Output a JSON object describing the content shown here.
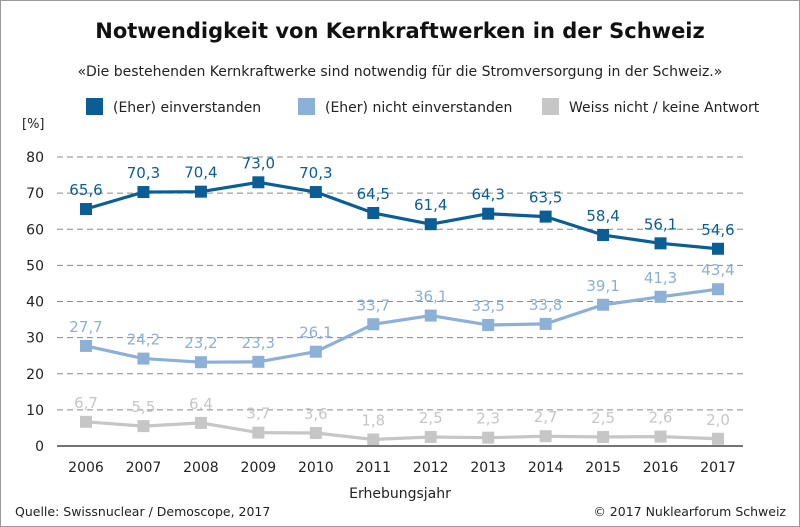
{
  "header": {
    "title": "Notwendigkeit von Kernkraftwerken in der Schweiz",
    "subtitle": "«Die bestehenden Kernkraftwerke sind notwendig für die Stromversorgung in der Schweiz.»"
  },
  "footer": {
    "source": "Quelle: Swissnuclear / Demoscope, 2017",
    "copyright": "© 2017 Nuklearforum Schweiz"
  },
  "chart_data": {
    "type": "line",
    "title": "Notwendigkeit von Kernkraftwerken in der Schweiz",
    "subtitle": "«Die bestehenden Kernkraftwerke sind notwendig für die Stromversorgung in der Schweiz.»",
    "xlabel": "Erhebungsjahr",
    "ylabel": "[%]",
    "x": [
      "2006",
      "2007",
      "2008",
      "2009",
      "2010",
      "2011",
      "2012",
      "2013",
      "2014",
      "2015",
      "2016",
      "2017"
    ],
    "ylim": [
      0,
      80
    ],
    "yticks": [
      0,
      10,
      20,
      30,
      40,
      50,
      60,
      70,
      80
    ],
    "grid": "horizontal-dashed",
    "legend": "top",
    "series": [
      {
        "name": "(Eher) einverstanden",
        "color": "#0a5e95",
        "values": [
          65.6,
          70.3,
          70.4,
          73.0,
          70.3,
          64.5,
          61.4,
          64.3,
          63.5,
          58.4,
          56.1,
          54.6
        ],
        "labels": [
          "65,6",
          "70,3",
          "70,4",
          "73,0",
          "70,3",
          "64,5",
          "61,4",
          "64,3",
          "63,5",
          "58,4",
          "56,1",
          "54,6"
        ]
      },
      {
        "name": "(Eher) nicht einverstanden",
        "color": "#8cb0d6",
        "values": [
          27.7,
          24.2,
          23.2,
          23.3,
          26.1,
          33.7,
          36.1,
          33.5,
          33.8,
          39.1,
          41.3,
          43.4
        ],
        "labels": [
          "27,7",
          "24,2",
          "23,2",
          "23,3",
          "26,1",
          "33,7",
          "36,1",
          "33,5",
          "33,8",
          "39,1",
          "41,3",
          "43,4"
        ]
      },
      {
        "name": "Weiss nicht / keine Antwort",
        "color": "#c6c6c6",
        "values": [
          6.7,
          5.5,
          6.4,
          3.7,
          3.6,
          1.8,
          2.5,
          2.3,
          2.7,
          2.5,
          2.6,
          2.0
        ],
        "labels": [
          "6,7",
          "5,5",
          "6,4",
          "3,7",
          "3,6",
          "1,8",
          "2,5",
          "2,3",
          "2,7",
          "2,5",
          "2,6",
          "2,0"
        ]
      }
    ]
  }
}
